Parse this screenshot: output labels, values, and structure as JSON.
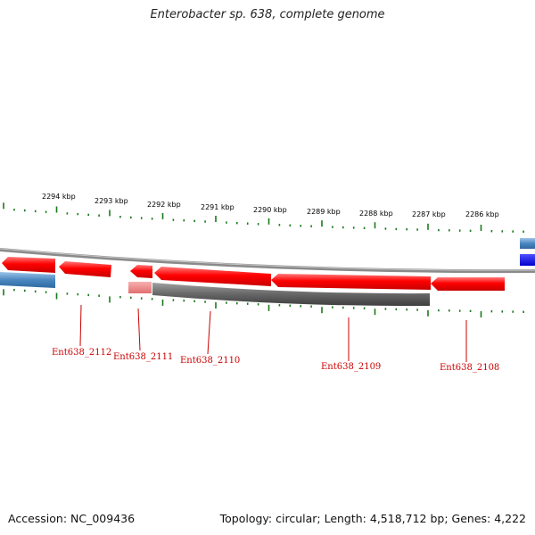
{
  "header": {
    "title": "Enterobacter sp. 638, complete genome"
  },
  "footer": {
    "accession": "Accession: NC_009436",
    "summary": "Topology: circular; Length: 4,518,712 bp; Genes: 4,222"
  },
  "colors": {
    "tick": "#1a7a1a",
    "gene_forward": "#ff0000",
    "gene_pseudo": "#ee8888",
    "rna_grey": "#666666",
    "backbone": "#8a8a8a",
    "blue_feature": "#4a86c0",
    "blue_bright": "#0000ff",
    "label": "#cc0000"
  },
  "scale": {
    "labels": [
      "2294 kbp",
      "2293 kbp",
      "2292 kbp",
      "2291 kbp",
      "2290 kbp",
      "2289 kbp",
      "2288 kbp",
      "2287 kbp",
      "2286 kbp"
    ]
  },
  "genes": [
    {
      "id": "Ent638_2112"
    },
    {
      "id": "Ent638_2111"
    },
    {
      "id": "Ent638_2110"
    },
    {
      "id": "Ent638_2109"
    },
    {
      "id": "Ent638_2108"
    }
  ]
}
